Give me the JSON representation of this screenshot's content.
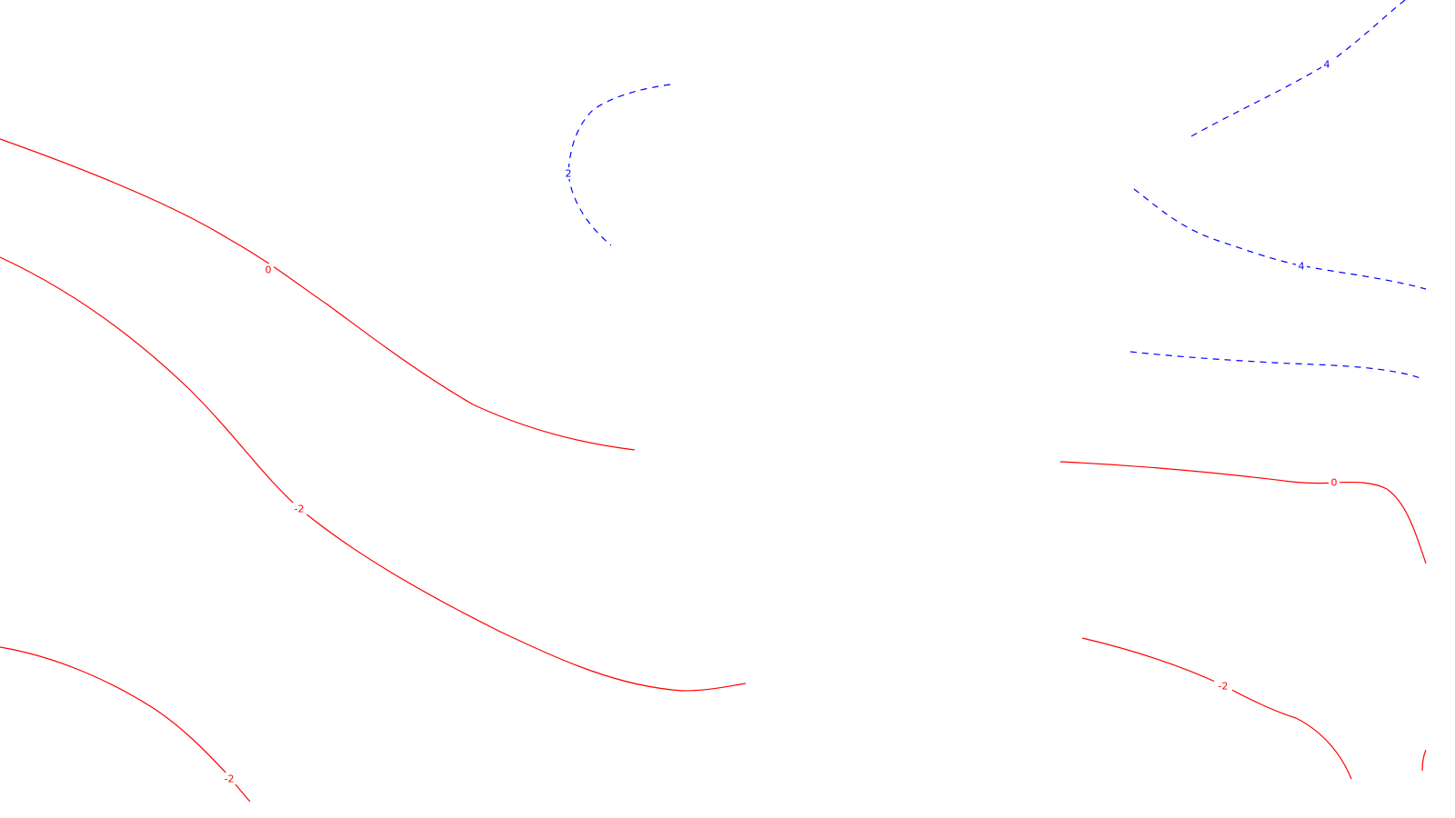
{
  "map": {
    "type": "contour",
    "colors": {
      "positive": "#0000ff",
      "negative": "#ff0000",
      "background": "#ffffff"
    },
    "line_styles": {
      "positive": "dashed",
      "negative_and_zero": "solid"
    },
    "contours": [
      {
        "id": "c-zero-left",
        "level": "0",
        "sign": "negative",
        "label": "0"
      },
      {
        "id": "c-neg2-mid",
        "level": "-2",
        "sign": "negative",
        "label": "-2"
      },
      {
        "id": "c-neg2-low",
        "level": "-2",
        "sign": "negative",
        "label": "-2"
      },
      {
        "id": "c-pos2-top",
        "level": "2",
        "sign": "positive",
        "label": "2"
      },
      {
        "id": "c-pos4-corner",
        "level": "4",
        "sign": "positive",
        "label": "4"
      },
      {
        "id": "c-pos4-right",
        "level": "4",
        "sign": "positive",
        "label": "4"
      },
      {
        "id": "c-pos-right-unlabeled",
        "level": "",
        "sign": "positive",
        "label": ""
      },
      {
        "id": "c-zero-right",
        "level": "0",
        "sign": "negative",
        "label": "0"
      },
      {
        "id": "c-neg2-right",
        "level": "-2",
        "sign": "negative",
        "label": "-2"
      },
      {
        "id": "c-neg-right-edge",
        "level": "",
        "sign": "negative",
        "label": ""
      }
    ]
  }
}
